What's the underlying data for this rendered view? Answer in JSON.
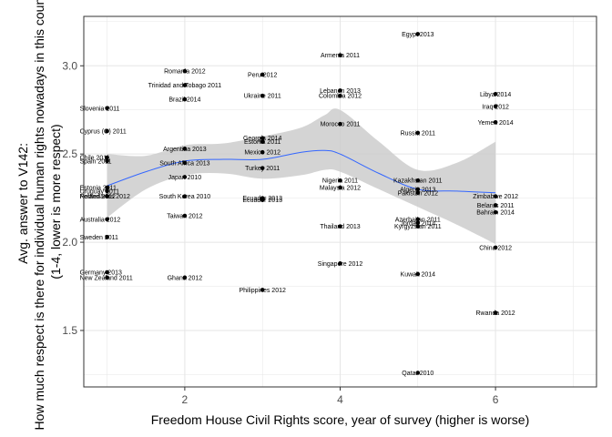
{
  "chart_data": {
    "type": "scatter",
    "title": "",
    "xlabel": "Freedom House Civil Rights score, year of survey (higher is worse)",
    "ylabel": [
      "Avg. answer to V142:",
      "How much respect is there for individual human rights nowadays in this country?",
      "(1-4, lower is more respect)"
    ],
    "xlim": [
      0.7,
      7.3
    ],
    "ylim": [
      1.18,
      3.28
    ],
    "xticks": [
      2,
      4,
      6
    ],
    "yticks": [
      1.5,
      2.0,
      2.5,
      3.0
    ],
    "ytick_labels": [
      "1.5",
      "2.0",
      "2.5",
      "3.0"
    ],
    "grid": true,
    "colors": {
      "points": "#000000",
      "smooth_line": "#3366ff",
      "ribbon": "#cccccc",
      "grid": "#e5e5e5",
      "panel_border": "#333333"
    },
    "points": [
      {
        "label": "Egypt 2013",
        "x": 5,
        "y": 3.18
      },
      {
        "label": "Armenia 2011",
        "x": 4,
        "y": 3.06
      },
      {
        "label": "Romania 2012",
        "x": 2,
        "y": 2.97
      },
      {
        "label": "Peru 2012",
        "x": 3,
        "y": 2.95
      },
      {
        "label": "Trinidad and Tobago 2011",
        "x": 2,
        "y": 2.89
      },
      {
        "label": "Lebanon 2013",
        "x": 4,
        "y": 2.86
      },
      {
        "label": "Colombia 2012",
        "x": 4,
        "y": 2.83
      },
      {
        "label": "Ukraine 2011",
        "x": 3,
        "y": 2.83
      },
      {
        "label": "Libya 2014",
        "x": 6,
        "y": 2.84
      },
      {
        "label": "Brazil 2014",
        "x": 2,
        "y": 2.81
      },
      {
        "label": "Slovenia 2011",
        "x": 1,
        "y": 2.76
      },
      {
        "label": "Iraq 2012",
        "x": 6,
        "y": 2.77
      },
      {
        "label": "Morocco 2011",
        "x": 4,
        "y": 2.67
      },
      {
        "label": "Yemen 2014",
        "x": 6,
        "y": 2.68
      },
      {
        "label": "Cyprus (G) 2011",
        "x": 1,
        "y": 2.63
      },
      {
        "label": "Russia 2011",
        "x": 5,
        "y": 2.62
      },
      {
        "label": "Georgia 2014",
        "x": 3,
        "y": 2.59
      },
      {
        "label": "Estonia 2011",
        "x": 3,
        "y": 2.57
      },
      {
        "label": "Argentina 2013",
        "x": 2,
        "y": 2.53
      },
      {
        "label": "Mexico 2012",
        "x": 3,
        "y": 2.51
      },
      {
        "label": "Chile 2011",
        "x": 1,
        "y": 2.48
      },
      {
        "label": "Spain 2011",
        "x": 1,
        "y": 2.46
      },
      {
        "label": "South Africa 2013",
        "x": 2,
        "y": 2.45
      },
      {
        "label": "Turkey 2011",
        "x": 3,
        "y": 2.42
      },
      {
        "label": "Japan 2010",
        "x": 2,
        "y": 2.37
      },
      {
        "label": "Nigeria 2011",
        "x": 4,
        "y": 2.35
      },
      {
        "label": "Kazakhstan 2011",
        "x": 5,
        "y": 2.35
      },
      {
        "label": "Estonia 2011",
        "x": 1,
        "y": 2.31
      },
      {
        "label": "Uruguay 2011",
        "x": 1,
        "y": 2.29
      },
      {
        "label": "Malaysia 2012",
        "x": 4,
        "y": 2.31
      },
      {
        "label": "Algeria 2013",
        "x": 5,
        "y": 2.3
      },
      {
        "label": "Pakistan 2012",
        "x": 5,
        "y": 2.28
      },
      {
        "label": "Netherlands 2012",
        "x": 1,
        "y": 2.26
      },
      {
        "label": "Poland 2012",
        "x": 1,
        "y": 2.26
      },
      {
        "label": "South Korea 2010",
        "x": 2,
        "y": 2.26
      },
      {
        "label": "Ecuador 2013",
        "x": 3,
        "y": 2.25
      },
      {
        "label": "Ecuador 2013",
        "x": 3,
        "y": 2.24
      },
      {
        "label": "Zimbabwe 2012",
        "x": 6,
        "y": 2.26
      },
      {
        "label": "Belarus 2011",
        "x": 6,
        "y": 2.21
      },
      {
        "label": "Bahrain 2014",
        "x": 6,
        "y": 2.17
      },
      {
        "label": "Taiwan 2012",
        "x": 2,
        "y": 2.15
      },
      {
        "label": "Australia 2012",
        "x": 1,
        "y": 2.13
      },
      {
        "label": "Azerbaijan 2011",
        "x": 5,
        "y": 2.13
      },
      {
        "label": "Jordan 2014",
        "x": 5,
        "y": 2.11
      },
      {
        "label": "Kyrgyzstan 2011",
        "x": 5,
        "y": 2.09
      },
      {
        "label": "Thailand 2013",
        "x": 4,
        "y": 2.09
      },
      {
        "label": "Sweden 2011",
        "x": 1,
        "y": 2.03
      },
      {
        "label": "China 2012",
        "x": 6,
        "y": 1.97
      },
      {
        "label": "Singapore 2012",
        "x": 4,
        "y": 1.88
      },
      {
        "label": "Germany 2013",
        "x": 1,
        "y": 1.83
      },
      {
        "label": "Kuwait 2014",
        "x": 5,
        "y": 1.82
      },
      {
        "label": "New Zealand 2011",
        "x": 1,
        "y": 1.8
      },
      {
        "label": "Ghana 2012",
        "x": 2,
        "y": 1.8
      },
      {
        "label": "Philippines 2012",
        "x": 3,
        "y": 1.73
      },
      {
        "label": "Rwanda 2012",
        "x": 6,
        "y": 1.6
      },
      {
        "label": "Qatar 2010",
        "x": 5,
        "y": 1.26
      }
    ],
    "smooth": {
      "x": [
        1,
        1.5,
        2,
        2.5,
        3,
        3.5,
        3.8,
        4,
        4.5,
        5,
        5.5,
        6
      ],
      "y": [
        2.32,
        2.4,
        2.46,
        2.47,
        2.47,
        2.51,
        2.52,
        2.5,
        2.39,
        2.3,
        2.29,
        2.28
      ],
      "lower": [
        2.14,
        2.3,
        2.38,
        2.39,
        2.36,
        2.38,
        2.41,
        2.4,
        2.3,
        2.2,
        2.1,
        1.99
      ],
      "upper": [
        2.5,
        2.49,
        2.55,
        2.56,
        2.6,
        2.65,
        2.72,
        2.75,
        2.57,
        2.41,
        2.45,
        2.57
      ]
    }
  }
}
